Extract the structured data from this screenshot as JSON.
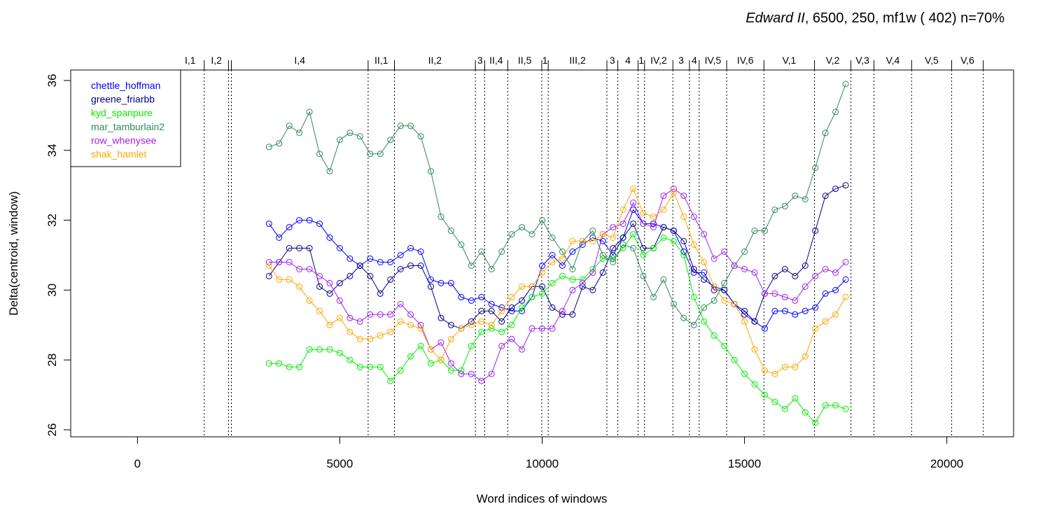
{
  "chart_data": {
    "type": "line",
    "title": {
      "italic": "Edward II",
      "rest": ", 6500, 250, mf1w ( 402)   n=70%"
    },
    "xlabel": "Word indices of windows",
    "ylabel": "Delta(centroid, window)",
    "xlim": [
      -1650,
      21650
    ],
    "ylim": [
      25.8,
      36.3
    ],
    "xticks": [
      0,
      5000,
      10000,
      15000,
      20000
    ],
    "yticks": [
      26,
      28,
      30,
      32,
      34,
      36
    ],
    "grid": false,
    "legend_position": "top-left",
    "scenes": [
      {
        "label": "I,1",
        "x": 1650
      },
      {
        "label": "I,2",
        "x": 2250
      },
      {
        "label": "",
        "x": 2320
      },
      {
        "label": "I,4",
        "x": 5700
      },
      {
        "label": "II,1",
        "x": 6350
      },
      {
        "label": "II,2",
        "x": 8350
      },
      {
        "label": "3",
        "x": 8580
      },
      {
        "label": "II,4",
        "x": 9150
      },
      {
        "label": "II,5",
        "x": 9990
      },
      {
        "label": "1",
        "x": 10150
      },
      {
        "label": "III,2",
        "x": 11600
      },
      {
        "label": "3",
        "x": 11870
      },
      {
        "label": "4",
        "x": 12370
      },
      {
        "label": "1",
        "x": 12530
      },
      {
        "label": "IV,2",
        "x": 13230
      },
      {
        "label": "3",
        "x": 13640
      },
      {
        "label": "4",
        "x": 13880
      },
      {
        "label": "IV,5",
        "x": 14560
      },
      {
        "label": "IV,6",
        "x": 15480
      },
      {
        "label": "V,1",
        "x": 16730
      },
      {
        "label": "V,2",
        "x": 17630
      },
      {
        "label": "V,3",
        "x": 18200
      },
      {
        "label": "V,4",
        "x": 19130
      },
      {
        "label": "V,5",
        "x": 20120
      },
      {
        "label": "V,6",
        "x": 20900
      }
    ],
    "x": [
      3250,
      3500,
      3750,
      4000,
      4250,
      4500,
      4750,
      5000,
      5250,
      5500,
      5750,
      6000,
      6250,
      6500,
      6750,
      7000,
      7250,
      7500,
      7750,
      8000,
      8250,
      8500,
      8750,
      9000,
      9250,
      9500,
      9750,
      10000,
      10250,
      10500,
      10750,
      11000,
      11250,
      11500,
      11750,
      12000,
      12250,
      12500,
      12750,
      13000,
      13250,
      13500,
      13750,
      14000,
      14250,
      14500,
      14750,
      15000,
      15250,
      15500,
      15750,
      16000,
      16250,
      16500,
      16750,
      17000,
      17250,
      17500
    ],
    "series": [
      {
        "name": "chettle_hoffman",
        "color": "#0000ff",
        "values": [
          31.9,
          31.5,
          31.8,
          32.0,
          32.0,
          31.9,
          31.5,
          31.2,
          30.9,
          30.7,
          30.9,
          30.8,
          30.8,
          31.0,
          31.2,
          31.1,
          30.3,
          30.2,
          30.2,
          29.8,
          29.7,
          29.8,
          29.6,
          29.5,
          29.4,
          29.4,
          29.8,
          30.7,
          31.0,
          30.7,
          31.1,
          31.3,
          31.5,
          31.4,
          31.0,
          31.5,
          32.3,
          31.9,
          31.9,
          31.8,
          31.7,
          31.1,
          30.5,
          30.5,
          30.0,
          30.0,
          29.6,
          29.3,
          29.1,
          28.9,
          29.4,
          29.4,
          29.3,
          29.4,
          29.5,
          29.9,
          30.0,
          30.3
        ]
      },
      {
        "name": "greene_friarbb",
        "color": "#00008b",
        "values": [
          30.4,
          30.8,
          31.2,
          31.2,
          31.2,
          30.1,
          29.9,
          30.2,
          30.4,
          30.7,
          30.4,
          29.9,
          30.3,
          30.6,
          30.7,
          30.7,
          30.1,
          29.2,
          29.0,
          28.9,
          29.1,
          29.4,
          29.4,
          29.1,
          29.5,
          29.7,
          30.1,
          30.1,
          29.5,
          29.3,
          29.3,
          30.1,
          30.0,
          30.5,
          31.2,
          31.5,
          31.9,
          31.2,
          31.2,
          31.8,
          31.7,
          31.4,
          30.6,
          30.3,
          30.1,
          30.0,
          29.6,
          29.4,
          29.1,
          29.9,
          30.4,
          30.6,
          30.4,
          30.7,
          31.7,
          32.7,
          32.9,
          33.0
        ]
      },
      {
        "name": "kyd_spanpure",
        "color": "#00ee00",
        "values": [
          27.9,
          27.9,
          27.8,
          27.8,
          28.3,
          28.3,
          28.3,
          28.2,
          28.0,
          27.8,
          27.8,
          27.8,
          27.4,
          27.7,
          28.1,
          28.4,
          27.9,
          28.0,
          27.7,
          27.7,
          28.4,
          28.8,
          28.9,
          28.8,
          29.0,
          29.5,
          29.8,
          29.9,
          30.2,
          30.4,
          30.3,
          30.3,
          30.6,
          30.9,
          30.9,
          31.2,
          31.6,
          31.0,
          31.2,
          31.5,
          31.4,
          31.0,
          29.8,
          29.1,
          28.7,
          28.4,
          28.0,
          27.6,
          27.3,
          27.0,
          26.8,
          26.6,
          26.9,
          26.5,
          26.2,
          26.7,
          26.7,
          26.6
        ]
      },
      {
        "name": "mar_tamburlain2",
        "color": "#2e8b57",
        "values": [
          34.1,
          34.2,
          34.7,
          34.5,
          35.1,
          33.9,
          33.4,
          34.3,
          34.5,
          34.4,
          33.9,
          33.9,
          34.3,
          34.7,
          34.7,
          34.4,
          33.4,
          32.1,
          31.7,
          31.3,
          30.7,
          31.1,
          30.6,
          31.1,
          31.6,
          31.8,
          31.6,
          32.0,
          31.5,
          31.1,
          30.6,
          31.4,
          31.7,
          31.0,
          30.8,
          31.3,
          31.2,
          30.4,
          29.8,
          30.3,
          29.6,
          29.2,
          29.0,
          29.5,
          29.7,
          30.2,
          30.7,
          31.1,
          31.7,
          31.7,
          32.3,
          32.4,
          32.7,
          32.6,
          33.5,
          34.5,
          35.1,
          35.9
        ]
      },
      {
        "name": "row_whenysee",
        "color": "#a020f0",
        "values": [
          30.8,
          30.8,
          30.8,
          30.6,
          30.6,
          30.4,
          30.2,
          29.7,
          29.2,
          29.1,
          29.3,
          29.3,
          29.3,
          29.6,
          29.3,
          29.0,
          28.3,
          28.5,
          27.9,
          27.6,
          27.6,
          27.4,
          27.6,
          28.4,
          28.6,
          28.3,
          28.9,
          28.9,
          28.9,
          29.4,
          30.0,
          30.2,
          30.5,
          31.6,
          31.8,
          31.9,
          32.5,
          31.9,
          31.8,
          32.7,
          32.9,
          32.7,
          32.1,
          31.6,
          30.9,
          31.1,
          30.7,
          30.6,
          30.5,
          29.9,
          29.9,
          29.8,
          29.7,
          30.1,
          30.4,
          30.6,
          30.5,
          30.8
        ]
      },
      {
        "name": "shak_hamlet",
        "color": "#ffa500",
        "values": [
          30.7,
          30.3,
          30.3,
          30.1,
          29.7,
          29.4,
          29.0,
          29.2,
          28.8,
          28.6,
          28.6,
          28.7,
          28.8,
          29.1,
          29.0,
          28.9,
          28.3,
          28.0,
          28.6,
          28.9,
          29.0,
          29.1,
          29.0,
          29.4,
          29.8,
          30.1,
          30.1,
          30.5,
          30.8,
          30.9,
          31.4,
          31.4,
          31.4,
          31.6,
          31.5,
          32.3,
          32.9,
          32.2,
          32.1,
          32.3,
          32.8,
          32.1,
          31.3,
          30.8,
          30.1,
          29.7,
          29.6,
          29.1,
          28.3,
          27.7,
          27.6,
          27.8,
          27.8,
          28.1,
          28.9,
          29.1,
          29.3,
          29.8
        ]
      }
    ]
  }
}
